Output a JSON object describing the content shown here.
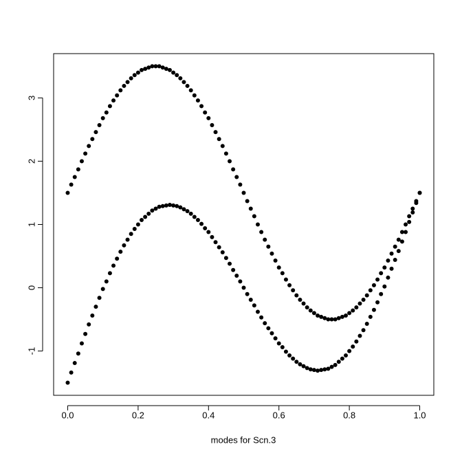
{
  "chart_data": {
    "type": "scatter",
    "x_label": "modes for Scn.3",
    "x": [
      0,
      0.01,
      0.02,
      0.03,
      0.04,
      0.05,
      0.06,
      0.07,
      0.08,
      0.09,
      0.1,
      0.11,
      0.12,
      0.13,
      0.14,
      0.15,
      0.16,
      0.17,
      0.18,
      0.19,
      0.2,
      0.21,
      0.22,
      0.23,
      0.24,
      0.25,
      0.26,
      0.27,
      0.28,
      0.29,
      0.3,
      0.31,
      0.32,
      0.33,
      0.34,
      0.35,
      0.36,
      0.37,
      0.38,
      0.39,
      0.4,
      0.41,
      0.42,
      0.43,
      0.44,
      0.45,
      0.46,
      0.47,
      0.48,
      0.49,
      0.5,
      0.51,
      0.52,
      0.53,
      0.54,
      0.55,
      0.56,
      0.57,
      0.58,
      0.59,
      0.6,
      0.61,
      0.62,
      0.63,
      0.64,
      0.65,
      0.66,
      0.67,
      0.68,
      0.69,
      0.7,
      0.71,
      0.72,
      0.73,
      0.74,
      0.75,
      0.76,
      0.77,
      0.78,
      0.79,
      0.8,
      0.81,
      0.82,
      0.83,
      0.84,
      0.85,
      0.86,
      0.87,
      0.88,
      0.89,
      0.9,
      0.91,
      0.92,
      0.93,
      0.94,
      0.95,
      0.96,
      0.97,
      0.98,
      0.99,
      1
    ],
    "series": [
      {
        "color": "#000000",
        "values": [
          1.5,
          1.63,
          1.75,
          1.87,
          2.0,
          2.12,
          2.24,
          2.35,
          2.46,
          2.57,
          2.68,
          2.77,
          2.87,
          2.96,
          3.04,
          3.12,
          3.19,
          3.25,
          3.31,
          3.36,
          3.4,
          3.44,
          3.46,
          3.48,
          3.5,
          3.5,
          3.5,
          3.48,
          3.46,
          3.44,
          3.4,
          3.36,
          3.31,
          3.25,
          3.19,
          3.12,
          3.04,
          2.96,
          2.87,
          2.77,
          2.68,
          2.57,
          2.46,
          2.35,
          2.24,
          2.12,
          2.0,
          1.87,
          1.75,
          1.63,
          1.5,
          1.37,
          1.25,
          1.13,
          1.0,
          0.88,
          0.76,
          0.65,
          0.54,
          0.43,
          0.32,
          0.23,
          0.13,
          0.04,
          -0.04,
          -0.12,
          -0.19,
          -0.25,
          -0.31,
          -0.36,
          -0.4,
          -0.44,
          -0.46,
          -0.48,
          -0.5,
          -0.5,
          -0.5,
          -0.48,
          -0.46,
          -0.44,
          -0.4,
          -0.36,
          -0.31,
          -0.25,
          -0.19,
          -0.12,
          -0.04,
          0.04,
          0.13,
          0.23,
          0.32,
          0.43,
          0.54,
          0.65,
          0.76,
          0.88,
          1.0,
          1.13,
          1.25,
          1.37,
          1.5
        ]
      },
      {
        "color": "#000000",
        "values": [
          -1.5,
          -1.34,
          -1.19,
          -1.04,
          -0.88,
          -0.73,
          -0.58,
          -0.44,
          -0.3,
          -0.16,
          -0.02,
          0.1,
          0.23,
          0.35,
          0.46,
          0.57,
          0.67,
          0.76,
          0.85,
          0.93,
          1.0,
          1.07,
          1.12,
          1.17,
          1.22,
          1.25,
          1.28,
          1.29,
          1.3,
          1.31,
          1.3,
          1.29,
          1.27,
          1.24,
          1.21,
          1.17,
          1.12,
          1.07,
          1.01,
          0.94,
          0.88,
          0.8,
          0.72,
          0.64,
          0.56,
          0.47,
          0.38,
          0.28,
          0.19,
          0.1,
          0,
          -0.1,
          -0.19,
          -0.28,
          -0.38,
          -0.47,
          -0.56,
          -0.64,
          -0.72,
          -0.8,
          -0.88,
          -0.94,
          -1.01,
          -1.07,
          -1.12,
          -1.17,
          -1.21,
          -1.24,
          -1.27,
          -1.29,
          -1.3,
          -1.31,
          -1.3,
          -1.29,
          -1.28,
          -1.25,
          -1.22,
          -1.17,
          -1.12,
          -1.07,
          -1.0,
          -0.93,
          -0.85,
          -0.76,
          -0.67,
          -0.57,
          -0.46,
          -0.35,
          -0.23,
          -0.1,
          0.02,
          0.16,
          0.3,
          0.44,
          0.58,
          0.73,
          0.88,
          1.04,
          1.19,
          1.34,
          1.5
        ]
      }
    ],
    "xlim": [
      -0.04,
      1.04
    ],
    "ylim": [
      -1.7,
      3.7
    ],
    "xticks": [
      {
        "value": 0,
        "label": "0.0"
      },
      0.2,
      0.4,
      0.6,
      0.8,
      {
        "value": 1,
        "label": "1.0"
      }
    ],
    "yticks": [
      -1,
      0,
      1,
      2,
      3
    ],
    "grid": false
  }
}
